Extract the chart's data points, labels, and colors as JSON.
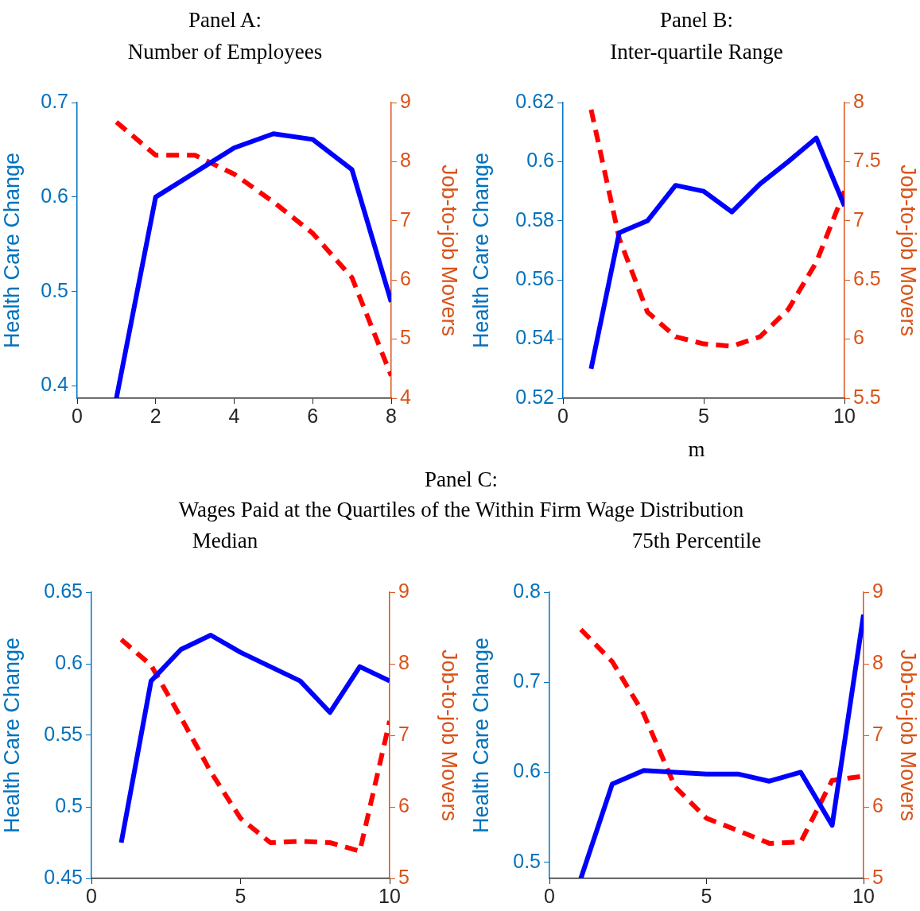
{
  "chart_data": [
    {
      "type": "line",
      "title": "Panel A:",
      "subtitle": "Number of Employees",
      "ylabel": "Health Care Change",
      "y2label": "Job-to-job Movers",
      "x": [
        1,
        2,
        3,
        4,
        5,
        6,
        7,
        8
      ],
      "xlim": [
        0,
        8
      ],
      "xticks": [
        0,
        2,
        4,
        6,
        8
      ],
      "ylim": [
        0.387,
        0.7
      ],
      "yticks": [
        0.4,
        0.5,
        0.6,
        0.7
      ],
      "y2lim": [
        4,
        9
      ],
      "y2ticks": [
        4,
        5,
        6,
        7,
        8,
        9
      ],
      "legend": false,
      "marker": "none",
      "series": [
        {
          "color": "#0000ff",
          "line_style": "solid",
          "values": [
            0.387,
            0.6,
            0.626,
            0.652,
            0.667,
            0.661,
            0.629,
            0.489
          ]
        },
        {
          "color": "#ff0000",
          "line_style": "dashed",
          "axis": "y2",
          "values": [
            8.67,
            8.11,
            8.11,
            7.79,
            7.32,
            6.79,
            6.04,
            4.38
          ]
        }
      ]
    },
    {
      "type": "line",
      "title": "Panel B:",
      "subtitle": "Inter-quartile Range",
      "xlabel": "m",
      "ylabel": "Health Care Change",
      "y2label": "Job-to-job Movers",
      "x": [
        1,
        2,
        3,
        4,
        5,
        6,
        7,
        8,
        9,
        10
      ],
      "xlim": [
        0,
        10
      ],
      "xticks": [
        0,
        5,
        10
      ],
      "ylim": [
        0.52,
        0.62
      ],
      "yticks": [
        0.52,
        0.54,
        0.56,
        0.58,
        0.6,
        0.62
      ],
      "y2lim": [
        5.5,
        8
      ],
      "y2ticks": [
        5.5,
        6,
        6.5,
        7,
        7.5,
        8
      ],
      "legend": false,
      "marker": "none",
      "series": [
        {
          "color": "#0000ff",
          "line_style": "solid",
          "values": [
            0.53,
            0.576,
            0.58,
            0.592,
            0.59,
            0.583,
            0.5925,
            0.6,
            0.608,
            0.585
          ]
        },
        {
          "color": "#ff0000",
          "line_style": "dashed",
          "axis": "y2",
          "values": [
            7.94,
            6.85,
            6.23,
            6.02,
            5.96,
            5.94,
            6.02,
            6.25,
            6.65,
            7.25
          ]
        }
      ]
    },
    {
      "type": "line",
      "title": "Median",
      "annotations": [
        "Panel C:",
        "Wages Paid at the Quartiles of the Within Firm Wage Distribution"
      ],
      "ylabel": "Health Care Change",
      "y2label": "Job-to-job Movers",
      "x": [
        1,
        2,
        3,
        4,
        5,
        6,
        7,
        8,
        9,
        10
      ],
      "xlim": [
        0,
        10
      ],
      "xticks": [
        0,
        5,
        10
      ],
      "ylim": [
        0.45,
        0.65
      ],
      "yticks": [
        0.45,
        0.5,
        0.55,
        0.6,
        0.65
      ],
      "y2lim": [
        5,
        9
      ],
      "y2ticks": [
        5,
        6,
        7,
        8,
        9
      ],
      "legend": false,
      "marker": "none",
      "series": [
        {
          "color": "#0000ff",
          "line_style": "solid",
          "values": [
            0.475,
            0.588,
            0.61,
            0.62,
            0.608,
            0.598,
            0.588,
            0.566,
            0.598,
            0.588
          ]
        },
        {
          "color": "#ff0000",
          "line_style": "dashed",
          "axis": "y2",
          "values": [
            8.34,
            7.98,
            7.25,
            6.49,
            5.84,
            5.5,
            5.52,
            5.5,
            5.38,
            7.2
          ]
        }
      ]
    },
    {
      "type": "line",
      "title": "75th Percentile",
      "ylabel": "Health Care Change",
      "y2label": "Job-to-job Movers",
      "x": [
        1,
        2,
        3,
        4,
        5,
        6,
        7,
        8,
        9,
        10
      ],
      "xlim": [
        0,
        10
      ],
      "xticks": [
        0,
        5,
        10
      ],
      "ylim": [
        0.482,
        0.8
      ],
      "yticks": [
        0.5,
        0.6,
        0.7,
        0.8
      ],
      "y2lim": [
        5,
        9
      ],
      "y2ticks": [
        5,
        6,
        7,
        8,
        9
      ],
      "legend": false,
      "marker": "none",
      "series": [
        {
          "color": "#0000ff",
          "line_style": "solid",
          "values": [
            0.482,
            0.587,
            0.602,
            0.6,
            0.598,
            0.598,
            0.59,
            0.6,
            0.541,
            0.775
          ]
        },
        {
          "color": "#ff0000",
          "line_style": "dashed",
          "axis": "y2",
          "values": [
            8.48,
            8.03,
            7.3,
            6.28,
            5.84,
            5.67,
            5.49,
            5.51,
            6.37,
            6.43
          ]
        }
      ]
    }
  ]
}
